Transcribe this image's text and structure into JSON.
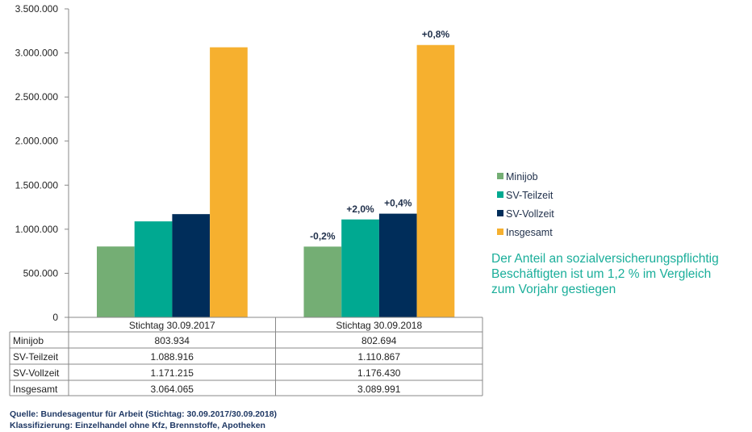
{
  "chart_data": {
    "type": "bar",
    "categories": [
      "Stichtag 30.09.2017",
      "Stichtag 30.09.2018"
    ],
    "series": [
      {
        "name": "Minijob",
        "color": "#74ae74",
        "values": [
          803934,
          802694
        ],
        "labels": [
          "",
          "-0,2%"
        ],
        "display": [
          "803.934",
          "802.694"
        ]
      },
      {
        "name": "SV-Teilzeit",
        "color": "#00a991",
        "values": [
          1088916,
          1110867
        ],
        "labels": [
          "",
          "+2,0%"
        ],
        "display": [
          "1.088.916",
          "1.110.867"
        ]
      },
      {
        "name": "SV-Vollzeit",
        "color": "#002d5a",
        "values": [
          1171215,
          1176430
        ],
        "labels": [
          "",
          "+0,4%"
        ],
        "display": [
          "1.171.215",
          "1.176.430"
        ]
      },
      {
        "name": "Insgesamt",
        "color": "#f6b02f",
        "values": [
          3064065,
          3089991
        ],
        "labels": [
          "",
          "+0,8%"
        ],
        "display": [
          "3.064.065",
          "3.089.991"
        ]
      }
    ],
    "ylim": [
      0,
      3500000
    ],
    "yticks": [
      "0",
      "500.000",
      "1.000.000",
      "1.500.000",
      "2.000.000",
      "2.500.000",
      "3.000.000",
      "3.500.000"
    ],
    "legend": "right",
    "grid": false
  },
  "note": "Der Anteil an sozialversicherungspflichtig Beschäftigten ist um 1,2 % im Vergleich zum Vorjahr gestiegen",
  "source": [
    "Quelle: Bundesagentur für Arbeit (Stichtag: 30.09.2017/30.09.2018)",
    "Klassifizierung: Einzelhandel ohne Kfz, Brennstoffe, Apotheken"
  ]
}
